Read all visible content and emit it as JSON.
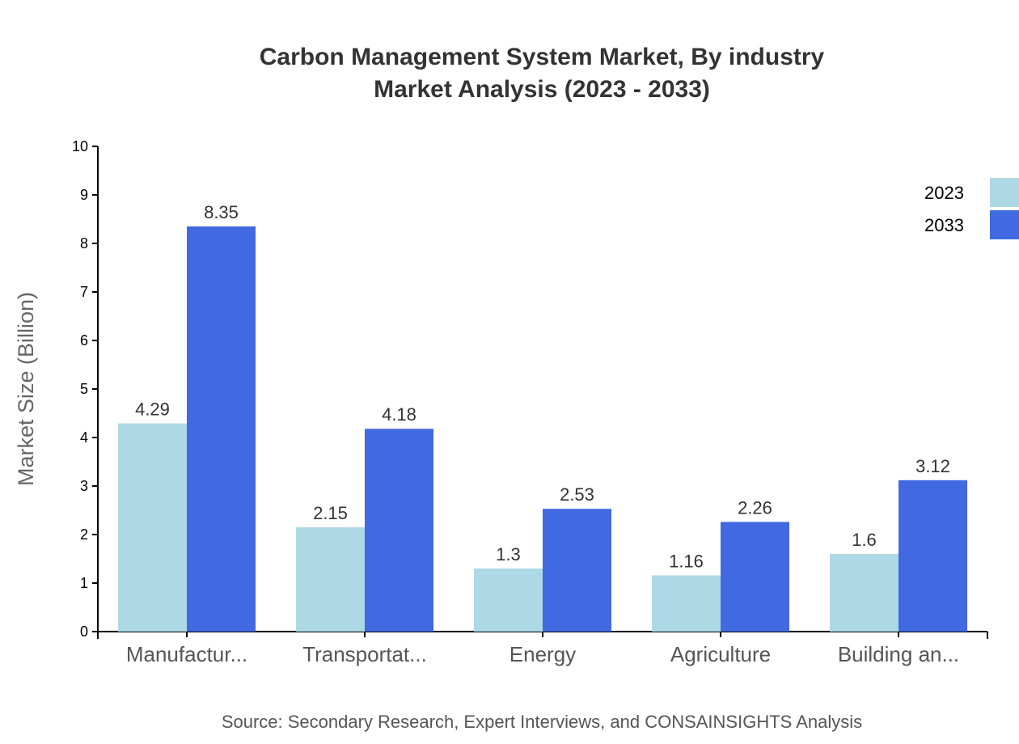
{
  "chart_data": {
    "type": "bar",
    "title": "Carbon Management System Market, By industry",
    "subtitle": "Market Analysis (2023 - 2033)",
    "xlabel": "",
    "ylabel": "Market Size (Billion)",
    "ylim": [
      0,
      10
    ],
    "yticks": [
      0,
      1,
      2,
      3,
      4,
      5,
      6,
      7,
      8,
      9,
      10
    ],
    "grid": false,
    "legend_position": "top-right",
    "categories": [
      "Manufactur...",
      "Transportat...",
      "Energy",
      "Agriculture",
      "Building an..."
    ],
    "series": [
      {
        "name": "2023",
        "color": "#add8e6",
        "values": [
          4.29,
          2.15,
          1.3,
          1.16,
          1.6
        ]
      },
      {
        "name": "2033",
        "color": "#4169e1",
        "values": [
          8.35,
          4.18,
          2.53,
          2.26,
          3.12
        ]
      }
    ],
    "source": "Source: Secondary Research, Expert Interviews, and CONSAINSIGHTS Analysis"
  }
}
